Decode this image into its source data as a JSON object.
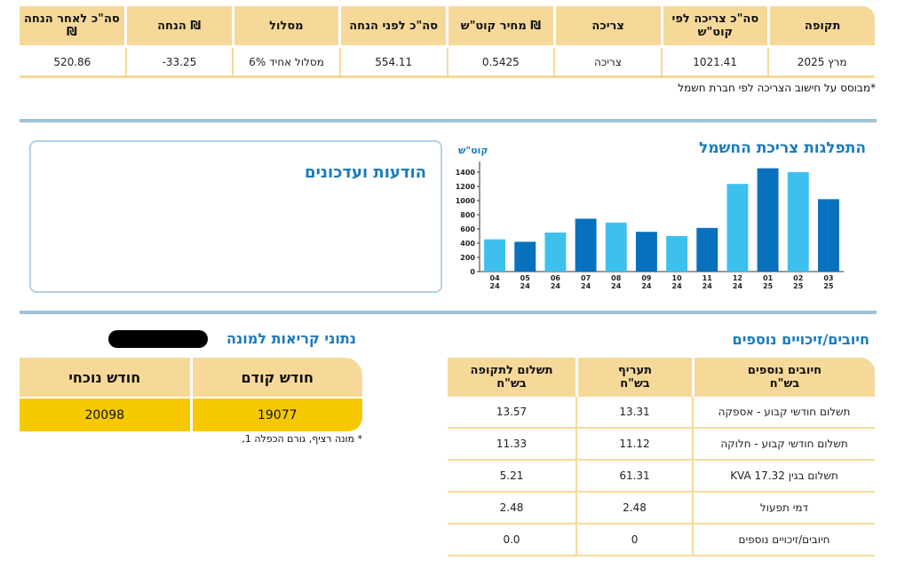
{
  "summary": {
    "headers": [
      "תקופה",
      "סה\"כ צריכה לפי קוט\"ש",
      "צריכה",
      "מחיר קוט\"ש ₪",
      "סה\"כ לפני הנחה",
      "מסלול",
      "הנחה ₪",
      "סה\"כ לאחר הנחה ₪"
    ],
    "values": [
      "מרץ 2025",
      "1021.41",
      "צריכה",
      "0.5425",
      "554.11",
      "מסלול אחיד 6%",
      "-33.25",
      "520.86"
    ],
    "note": "*מבוסס על חישוב הצריכה לפי חברת חשמל"
  },
  "announcements": {
    "title": "הודעות ועדכונים"
  },
  "chart_data": {
    "type": "bar",
    "title": "התפלגות צריכת החשמל",
    "ylabel": "קוט\"ש",
    "ylim": [
      0,
      1500
    ],
    "yticks": [
      0,
      200,
      400,
      600,
      800,
      1000,
      1200,
      1400
    ],
    "categories": [
      "04\n24",
      "05\n24",
      "06\n24",
      "07\n24",
      "08\n24",
      "09\n24",
      "10\n24",
      "11\n24",
      "12\n24",
      "01\n25",
      "02\n25",
      "03\n25"
    ],
    "values": [
      455,
      420,
      550,
      745,
      690,
      560,
      500,
      615,
      1235,
      1455,
      1400,
      1020
    ],
    "colors": [
      "#3ec0ee",
      "#0871be",
      "#3ec0ee",
      "#0871be",
      "#3ec0ee",
      "#0871be",
      "#3ec0ee",
      "#0871be",
      "#3ec0ee",
      "#0871be",
      "#3ec0ee",
      "#0871be"
    ]
  },
  "meter": {
    "title": "נתוני קריאות למונה",
    "headers": [
      "חודש קודם",
      "חודש נוכחי"
    ],
    "values": [
      "19077",
      "20098"
    ],
    "note": "* מונה רציף, גורם הכפלה 1,"
  },
  "charges": {
    "title": "חיובים/זיכויים נוספים",
    "headers": [
      "חיובים נוספים\nבש\"ח",
      "תעריף\nבש\"ח",
      "תשלום לתקופה\nבש\"ח"
    ],
    "rows": [
      [
        "תשלום חודשי קבוע - אספקה",
        "13.31",
        "13.57"
      ],
      [
        "תשלום חודשי קבוע - חלוקה",
        "11.12",
        "11.33"
      ],
      [
        "תשלום בגין 17.32 KVA",
        "61.31",
        "5.21"
      ],
      [
        "דמי תפעול",
        "2.48",
        "2.48"
      ],
      [
        "חיובים/זיכויים נוספים",
        "0",
        "0.0"
      ]
    ]
  }
}
